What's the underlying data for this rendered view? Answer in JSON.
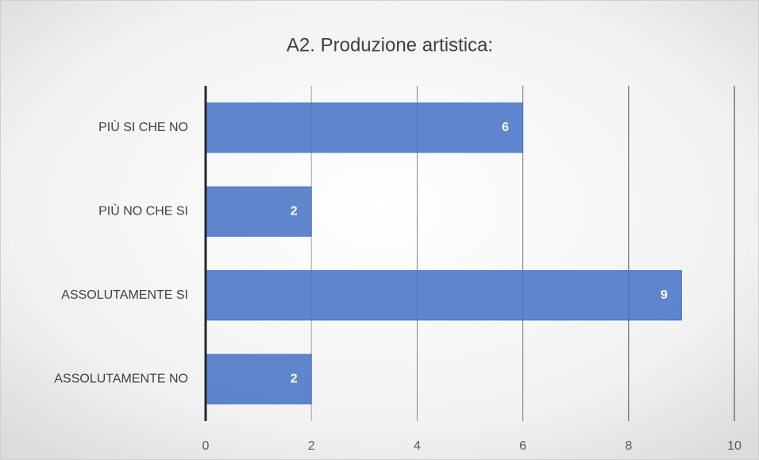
{
  "chart_data": {
    "type": "bar",
    "orientation": "horizontal",
    "title": "A2. Produzione artistica:",
    "categories": [
      "PIÙ SI CHE NO",
      "PIÙ NO CHE SI",
      "ASSOLUTAMENTE SI",
      "ASSOLUTAMENTE NO"
    ],
    "values": [
      6,
      2,
      9,
      2
    ],
    "color": "#4472c4",
    "xlim": [
      0,
      10
    ],
    "xticks": [
      0,
      2,
      4,
      6,
      8,
      10
    ],
    "grid": true,
    "data_labels": true
  }
}
